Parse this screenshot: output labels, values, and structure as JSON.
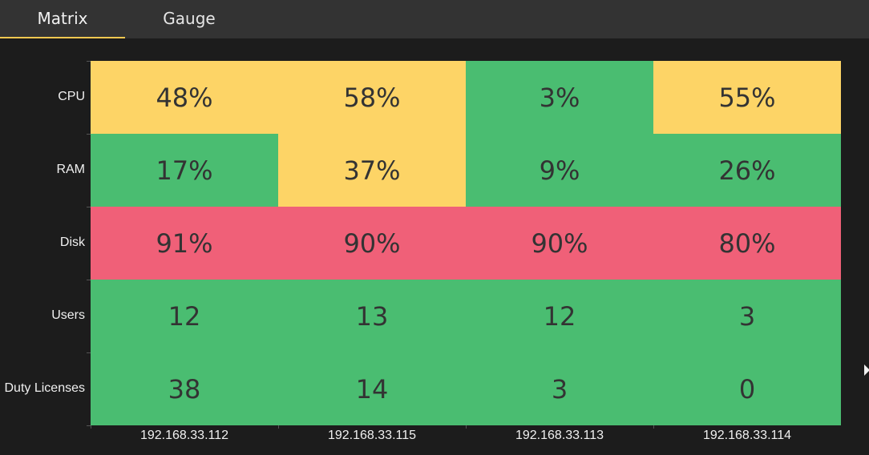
{
  "tabs": [
    {
      "label": "Matrix",
      "active": true
    },
    {
      "label": "Gauge",
      "active": false
    }
  ],
  "colors": {
    "ok": "#4abd71",
    "warn": "#fdd466",
    "critical": "#f06078",
    "accent": "#f6c850"
  },
  "chart_data": {
    "type": "heatmap",
    "rows": [
      "CPU",
      "RAM",
      "Disk",
      "Users",
      "Duty Licenses"
    ],
    "columns": [
      "192.168.33.112",
      "192.168.33.115",
      "192.168.33.113",
      "192.168.33.114"
    ],
    "values": [
      [
        48,
        58,
        3,
        55
      ],
      [
        17,
        37,
        9,
        26
      ],
      [
        91,
        90,
        90,
        80
      ],
      [
        12,
        13,
        12,
        3
      ],
      [
        38,
        14,
        3,
        0
      ]
    ],
    "display": [
      [
        "48%",
        "58%",
        "3%",
        "55%"
      ],
      [
        "17%",
        "37%",
        "9%",
        "26%"
      ],
      [
        "91%",
        "90%",
        "90%",
        "80%"
      ],
      [
        "12",
        "13",
        "12",
        "3"
      ],
      [
        "38",
        "14",
        "3",
        "0"
      ]
    ],
    "status": [
      [
        "warn",
        "warn",
        "ok",
        "warn"
      ],
      [
        "ok",
        "warn",
        "ok",
        "ok"
      ],
      [
        "critical",
        "critical",
        "critical",
        "critical"
      ],
      [
        "ok",
        "ok",
        "ok",
        "ok"
      ],
      [
        "ok",
        "ok",
        "ok",
        "ok"
      ]
    ]
  }
}
